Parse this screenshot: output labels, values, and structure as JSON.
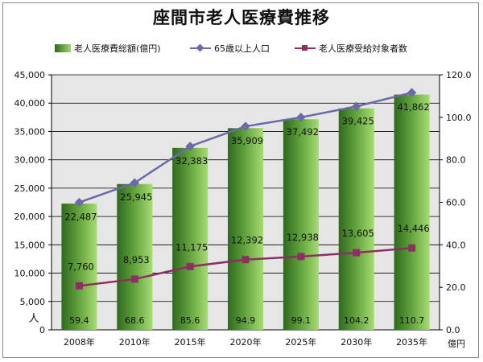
{
  "chart_data": {
    "type": "bar",
    "title": "座間市老人医療費推移",
    "categories": [
      "2008年",
      "2010年",
      "2015年",
      "2020年",
      "2025年",
      "2030年",
      "2035年"
    ],
    "series": [
      {
        "name": "老人医療費総額(億円)",
        "type": "bar",
        "axis": "right",
        "values": [
          59.4,
          68.6,
          85.6,
          94.9,
          99.1,
          104.2,
          110.7
        ]
      },
      {
        "name": "65歳以上人口",
        "type": "line",
        "marker": "diamond",
        "axis": "left",
        "values": [
          22487,
          25945,
          32383,
          35909,
          37492,
          39425,
          41862
        ]
      },
      {
        "name": "老人医療受給対象者数",
        "type": "line",
        "marker": "square",
        "axis": "left",
        "values": [
          7760,
          8953,
          11175,
          12392,
          12938,
          13605,
          14446
        ]
      }
    ],
    "left_axis": {
      "min": 0,
      "max": 45000,
      "step": 5000,
      "ticks": [
        "0",
        "5,000",
        "10,000",
        "15,000",
        "20,000",
        "25,000",
        "30,000",
        "35,000",
        "40,000",
        "45,000"
      ],
      "unit": "人"
    },
    "right_axis": {
      "min": 0,
      "max": 120,
      "step": 20,
      "ticks": [
        "0.0",
        "20.0",
        "40.0",
        "60.0",
        "80.0",
        "100.0",
        "120.0"
      ],
      "unit": "億円"
    },
    "pop_labels": [
      "22,487",
      "25,945",
      "32,383",
      "35,909",
      "37,492",
      "39,425",
      "41,862"
    ],
    "recip_labels": [
      "7,760",
      "8,953",
      "11,175",
      "12,392",
      "12,938",
      "13,605",
      "14,446"
    ],
    "cost_labels": [
      "59.4",
      "68.6",
      "85.6",
      "94.9",
      "99.1",
      "104.2",
      "110.7"
    ],
    "grid": true,
    "legend_position": "top"
  },
  "colors": {
    "bar_dark": "#2f6a1f",
    "bar_light": "#9dd66b",
    "population_line": "#6a6aa8",
    "recipients_line": "#8e2f62",
    "grid": "#000000",
    "plot_bg": "#e6e6e6"
  }
}
